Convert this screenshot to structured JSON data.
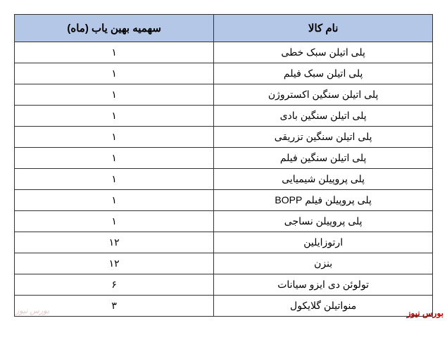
{
  "table": {
    "header_bg_color": "#b4c7e7",
    "border_color": "#333333",
    "columns": [
      {
        "label": "نام کالا",
        "align": "center"
      },
      {
        "label": "سهمیه بهین یاب (ماه)",
        "align": "center"
      }
    ],
    "rows": [
      {
        "name": "پلی اتیلن سبک خطی",
        "quota": "۱"
      },
      {
        "name": "پلی اتیلن سبک فیلم",
        "quota": "۱"
      },
      {
        "name": "پلی اتیلن سنگین اکستروژن",
        "quota": "۱"
      },
      {
        "name": "پلی اتیلن سنگین بادی",
        "quota": "۱"
      },
      {
        "name": "پلی اتیلن سنگین تزریقی",
        "quota": "۱"
      },
      {
        "name": "پلی اتیلن سنگین فیلم",
        "quota": "۱"
      },
      {
        "name": "پلی پروپیلن شیمیایی",
        "quota": "۱"
      },
      {
        "name": "پلی پروپیلن فیلم BOPP",
        "quota": "۱"
      },
      {
        "name": "پلی پروپیلن نساجی",
        "quota": "۱"
      },
      {
        "name": "ارتوزایلین",
        "quota": "۱۲"
      },
      {
        "name": "بنزن",
        "quota": "۱۲"
      },
      {
        "name": "تولوئن دی ایزو سیانات",
        "quota": "۶"
      },
      {
        "name": "منواتیلن گلایکول",
        "quota": "۳"
      }
    ]
  },
  "watermarks": {
    "left": "بورس نیوز",
    "right": "بورس نيوز"
  }
}
